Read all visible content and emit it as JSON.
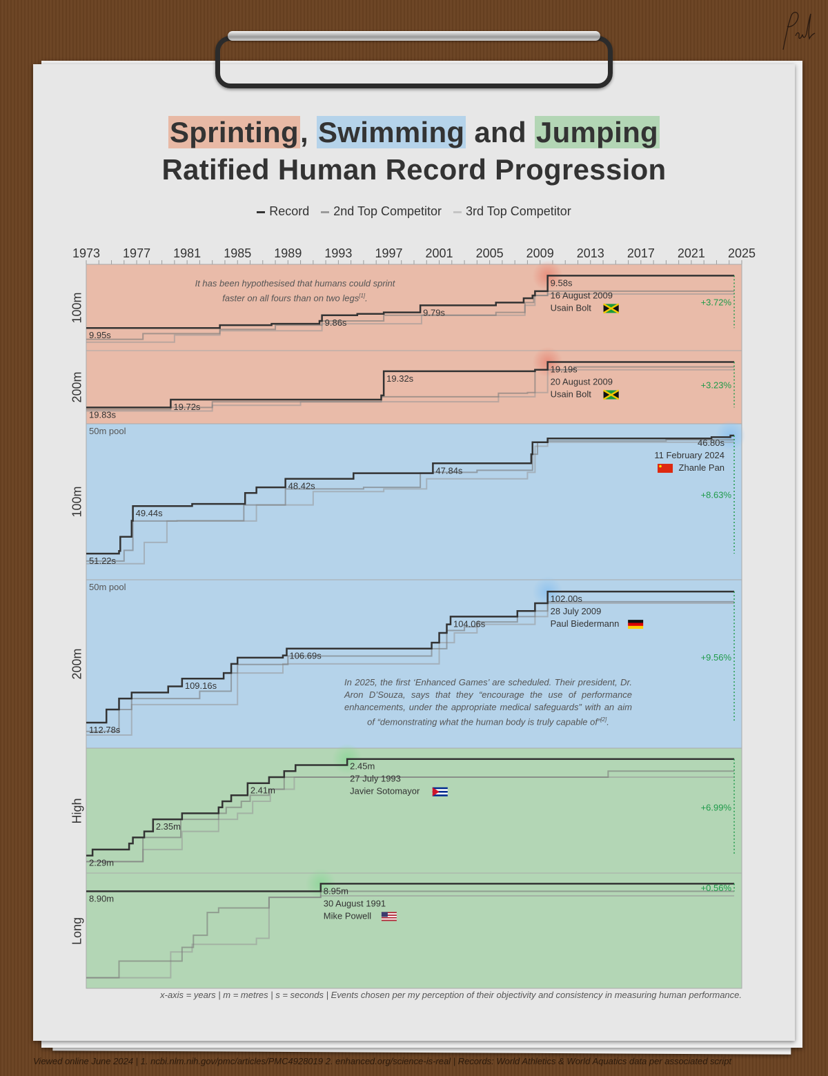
{
  "title": {
    "word_sprint": "Sprinting",
    "comma": ",",
    "word_swim": "Swimming",
    "and": "and",
    "word_jump": "Jumping",
    "line2": "Ratified Human Record Progression"
  },
  "legend": [
    {
      "label": "Record",
      "color": "#333333"
    },
    {
      "label": "2nd Top Competitor",
      "color": "#9a9a9a"
    },
    {
      "label": "3rd Top Competitor",
      "color": "#c4c4c4"
    }
  ],
  "colors": {
    "sprint": "#e9bba9",
    "swim": "#b5d3ea",
    "jump": "#b3d6b5",
    "improvement": "#1f9a4a",
    "record": "#333333"
  },
  "notes": {
    "sprint": "It has been hypothesised that humans could sprint faster on all fours than on two legs",
    "sprint_ref": "[1]",
    "swim": "In 2025, the first ‘Enhanced Games’ are scheduled. Their president, Dr. Aron D’Souza, says that they “encourage the use of performance enhancements, under the appropriate medical safeguards” with an aim of “demonstrating what the human body is truly capable of”",
    "swim_ref": "[2]"
  },
  "caption": "x-axis = years | m = metres | s = seconds | Events chosen per my perception of their objectivity and consistency in measuring human performance.",
  "footer": "Viewed online June 2024 | 1. ncbi.nlm.nih.gov/pmc/articles/PMC4928019 2. enhanced.org/science-is-real | Records: World Athletics & World Aquatics data per associated script",
  "chart_data": {
    "type": "line",
    "step": true,
    "xlim": [
      1973,
      2025
    ],
    "x_end": 2024.4,
    "xticks": [
      1973,
      1977,
      1981,
      1985,
      1989,
      1993,
      1997,
      2001,
      2005,
      2009,
      2013,
      2017,
      2021,
      2025
    ],
    "panels": [
      {
        "label": "100m",
        "group": "sprint",
        "sublabel": "",
        "ylim": [
          10.11,
          9.5
        ],
        "improvement": "+3.72%",
        "record": [
          [
            1973,
            9.95
          ],
          [
            1983.6,
            9.93
          ],
          [
            1987.7,
            9.92
          ],
          [
            1991.5,
            9.9
          ],
          [
            1991.7,
            9.86
          ],
          [
            1994.5,
            9.85
          ],
          [
            1996.6,
            9.84
          ],
          [
            1999.5,
            9.79
          ],
          [
            2005.5,
            9.77
          ],
          [
            2007.7,
            9.74
          ],
          [
            2008.4,
            9.72
          ],
          [
            2008.6,
            9.69
          ],
          [
            2009.6,
            9.58
          ]
        ],
        "second": [
          [
            1973,
            10.03
          ],
          [
            1977.5,
            9.99
          ],
          [
            1983.6,
            9.96
          ],
          [
            1988,
            9.93
          ],
          [
            1991.7,
            9.9
          ],
          [
            1996.6,
            9.86
          ],
          [
            2005.5,
            9.84
          ],
          [
            2007.8,
            9.77
          ],
          [
            2008.5,
            9.72
          ],
          [
            2009.6,
            9.69
          ]
        ],
        "third": [
          [
            1973,
            10.05
          ],
          [
            1980,
            10.0
          ],
          [
            1983.6,
            9.97
          ],
          [
            1991.7,
            9.92
          ],
          [
            1999.6,
            9.86
          ],
          [
            2007.8,
            9.79
          ],
          [
            2008.6,
            9.72
          ],
          [
            2009.6,
            9.71
          ]
        ],
        "labels": [
          {
            "year": 1973,
            "value": 9.95,
            "text": "9.95s"
          },
          {
            "year": 1991.7,
            "value": 9.86,
            "text": "9.86s"
          },
          {
            "year": 1999.5,
            "value": 9.79,
            "text": "9.79s"
          }
        ],
        "holder": {
          "year": 2009.6,
          "value": 9.58,
          "time": "9.58s",
          "date": "16 August 2009",
          "name": "Usain Bolt",
          "flag": "jamaica"
        }
      },
      {
        "label": "200m",
        "group": "sprint",
        "sublabel": "",
        "ylim": [
          20.06,
          19.03
        ],
        "improvement": "+3.23%",
        "record": [
          [
            1973,
            19.83
          ],
          [
            1979.7,
            19.72
          ],
          [
            1996.4,
            19.66
          ],
          [
            1996.6,
            19.32
          ],
          [
            2008.6,
            19.3
          ],
          [
            2009.6,
            19.19
          ]
        ],
        "second": [
          [
            1973,
            19.86
          ],
          [
            1979.7,
            19.83
          ],
          [
            1983,
            19.75
          ],
          [
            1996.4,
            19.68
          ],
          [
            2005.7,
            19.63
          ],
          [
            2008,
            19.62
          ],
          [
            2008.6,
            19.3
          ],
          [
            2011.7,
            19.26
          ]
        ],
        "third": [
          [
            1973,
            19.88
          ],
          [
            1983,
            19.8
          ],
          [
            1990,
            19.75
          ],
          [
            2005.7,
            19.68
          ],
          [
            2008.6,
            19.62
          ],
          [
            2009.6,
            19.3
          ]
        ],
        "labels": [
          {
            "year": 1973,
            "value": 19.83,
            "text": "19.83s"
          },
          {
            "year": 1979.7,
            "value": 19.72,
            "text": "19.72s"
          },
          {
            "year": 1996.6,
            "value": 19.32,
            "text": "19.32s"
          }
        ],
        "holder": {
          "year": 2009.6,
          "value": 19.19,
          "time": "19.19s",
          "date": "20 August 2009",
          "name": "Usain Bolt",
          "flag": "jamaica"
        }
      },
      {
        "label": "100m",
        "group": "swim",
        "sublabel": "50m pool",
        "ylim": [
          52.2,
          46.36
        ],
        "improvement": "+8.63%",
        "record": [
          [
            1973,
            51.22
          ],
          [
            1975.6,
            51.12
          ],
          [
            1975.7,
            50.59
          ],
          [
            1976.6,
            49.99
          ],
          [
            1976.7,
            49.44
          ],
          [
            1981.4,
            49.36
          ],
          [
            1985.6,
            48.95
          ],
          [
            1986.5,
            48.74
          ],
          [
            1988.8,
            48.42
          ],
          [
            1994.2,
            48.21
          ],
          [
            2000.5,
            47.84
          ],
          [
            2008.3,
            47.5
          ],
          [
            2008.4,
            47.05
          ],
          [
            2009.6,
            46.91
          ],
          [
            2022.6,
            46.86
          ],
          [
            2024.1,
            46.8
          ]
        ],
        "second": [
          [
            1973,
            51.5
          ],
          [
            1976,
            51.1
          ],
          [
            1976.7,
            50.0
          ],
          [
            1980.2,
            49.99
          ],
          [
            1985.5,
            49.4
          ],
          [
            1988.8,
            48.8
          ],
          [
            1995,
            48.74
          ],
          [
            1999.5,
            48.2
          ],
          [
            2000.5,
            48.18
          ],
          [
            2004,
            48.1
          ],
          [
            2008.4,
            47.5
          ],
          [
            2008.8,
            47.05
          ],
          [
            2009.6,
            47.0
          ],
          [
            2019,
            46.96
          ]
        ],
        "third": [
          [
            1973,
            51.6
          ],
          [
            1977.6,
            50.8
          ],
          [
            1979.4,
            50.0
          ],
          [
            1986.5,
            49.4
          ],
          [
            1991,
            48.9
          ],
          [
            1996.6,
            48.8
          ],
          [
            2000,
            48.42
          ],
          [
            2008,
            48.18
          ],
          [
            2008.6,
            47.2
          ],
          [
            2009.6,
            47.05
          ]
        ],
        "labels": [
          {
            "year": 1973,
            "value": 51.22,
            "text": "51.22s"
          },
          {
            "year": 1976.7,
            "value": 49.44,
            "text": "49.44s"
          },
          {
            "year": 1988.8,
            "value": 48.42,
            "text": "48.42s"
          },
          {
            "year": 2000.5,
            "value": 47.84,
            "text": "47.84s"
          }
        ],
        "holder": {
          "year": 2024.1,
          "value": 46.8,
          "time": "46.80s",
          "date": "11 February 2024",
          "name": "Zhanle Pan",
          "flag": "china"
        }
      },
      {
        "label": "200m",
        "group": "swim",
        "sublabel": "50m pool",
        "ylim": [
          114.88,
          101.03
        ],
        "improvement": "+9.56%",
        "record": [
          [
            1973,
            112.78
          ],
          [
            1974.6,
            111.7
          ],
          [
            1975.6,
            110.8
          ],
          [
            1976.6,
            110.3
          ],
          [
            1979.5,
            109.8
          ],
          [
            1980.6,
            109.16
          ],
          [
            1983.9,
            108.7
          ],
          [
            1984.5,
            107.95
          ],
          [
            1985,
            107.44
          ],
          [
            1988.6,
            107.25
          ],
          [
            1988.9,
            106.69
          ],
          [
            2000.4,
            106.2
          ],
          [
            2001,
            105.4
          ],
          [
            2001.6,
            104.7
          ],
          [
            2001.9,
            104.06
          ],
          [
            2007.2,
            103.6
          ],
          [
            2008.6,
            102.96
          ],
          [
            2009.6,
            102.0
          ]
        ],
        "second": [
          [
            1973,
            113.5
          ],
          [
            1975.6,
            111.7
          ],
          [
            1976.6,
            110.8
          ],
          [
            1982,
            110.2
          ],
          [
            1984.5,
            108.7
          ],
          [
            1985,
            108.0
          ],
          [
            1989,
            107.3
          ],
          [
            2000.4,
            106.7
          ],
          [
            2001.6,
            105.2
          ],
          [
            2003,
            104.9
          ],
          [
            2004,
            104.5
          ],
          [
            2007.2,
            104.06
          ],
          [
            2008.6,
            103.6
          ],
          [
            2009.6,
            102.84
          ]
        ],
        "third": [
          [
            1973,
            113.8
          ],
          [
            1976.6,
            111.3
          ],
          [
            1985,
            108.7
          ],
          [
            1988.6,
            107.95
          ],
          [
            2001,
            106.2
          ],
          [
            2002.2,
            105.4
          ],
          [
            2004,
            104.7
          ],
          [
            2008.6,
            104.06
          ],
          [
            2009.6,
            102.96
          ]
        ],
        "labels": [
          {
            "year": 1973,
            "value": 112.78,
            "text": "112.78s"
          },
          {
            "year": 1980.6,
            "value": 109.16,
            "text": "109.16s"
          },
          {
            "year": 1988.9,
            "value": 106.69,
            "text": "106.69s"
          },
          {
            "year": 2001.9,
            "value": 104.06,
            "text": "104.06s"
          }
        ],
        "holder": {
          "year": 2009.6,
          "value": 102.0,
          "time": "102.00s",
          "date": "28 July 2009",
          "name": "Paul Biedermann",
          "flag": "germany"
        }
      },
      {
        "label": "High",
        "group": "jump",
        "sublabel": "",
        "ylim": [
          2.261,
          2.468
        ],
        "improvement": "+6.99%",
        "record": [
          [
            1973,
            2.29
          ],
          [
            1973.5,
            2.3
          ],
          [
            1976.4,
            2.31
          ],
          [
            1976.7,
            2.32
          ],
          [
            1977.6,
            2.33
          ],
          [
            1978.3,
            2.35
          ],
          [
            1980.6,
            2.36
          ],
          [
            1983.5,
            2.37
          ],
          [
            1983.8,
            2.38
          ],
          [
            1984.5,
            2.39
          ],
          [
            1985.8,
            2.41
          ],
          [
            1987.5,
            2.42
          ],
          [
            1988.7,
            2.43
          ],
          [
            1989.6,
            2.44
          ],
          [
            1993.7,
            2.45
          ]
        ],
        "second": [
          [
            1973,
            2.28
          ],
          [
            1977.5,
            2.32
          ],
          [
            1980.5,
            2.35
          ],
          [
            1983.5,
            2.36
          ],
          [
            1984.1,
            2.37
          ],
          [
            1985.3,
            2.38
          ],
          [
            1986.0,
            2.39
          ],
          [
            1987.5,
            2.4
          ],
          [
            1988.7,
            2.42
          ],
          [
            2014.4,
            2.43
          ]
        ],
        "third": [
          [
            1973,
            2.28
          ],
          [
            1977.5,
            2.3
          ],
          [
            1980.6,
            2.33
          ],
          [
            1983.5,
            2.35
          ],
          [
            1985,
            2.36
          ],
          [
            1986.2,
            2.38
          ],
          [
            1987.6,
            2.4
          ],
          [
            1989.5,
            2.42
          ]
        ],
        "labels": [
          {
            "year": 1973,
            "value": 2.29,
            "text": "2.29m"
          },
          {
            "year": 1978.3,
            "value": 2.35,
            "text": "2.35m"
          },
          {
            "year": 1985.8,
            "value": 2.41,
            "text": "2.41m"
          }
        ],
        "holder": {
          "year": 1993.7,
          "value": 2.45,
          "time": "2.45m",
          "date": "27 July 1993",
          "name": "Javier Sotomayor",
          "flag": "cuba"
        }
      },
      {
        "label": "Long",
        "group": "jump",
        "sublabel": "",
        "ylim": [
          8.26,
          9.02
        ],
        "improvement": "+0.56%",
        "record": [
          [
            1973,
            8.9
          ],
          [
            1991.6,
            8.95
          ]
        ],
        "second": [
          [
            1973,
            8.33
          ],
          [
            1975.6,
            8.44
          ],
          [
            1980.6,
            8.53
          ],
          [
            1981.5,
            8.61
          ],
          [
            1982.6,
            8.76
          ],
          [
            1983.5,
            8.79
          ],
          [
            1987.5,
            8.86
          ],
          [
            1991.6,
            8.9
          ]
        ],
        "third": [
          [
            1973,
            8.33
          ],
          [
            1979.7,
            8.5
          ],
          [
            1981.4,
            8.55
          ],
          [
            1986.5,
            8.59
          ],
          [
            1987.5,
            8.86
          ],
          [
            1991.6,
            8.87
          ]
        ],
        "labels": [
          {
            "year": 1973,
            "value": 8.9,
            "text": "8.90m"
          }
        ],
        "holder": {
          "year": 1991.6,
          "value": 8.95,
          "time": "8.95m",
          "date": "30 August 1991",
          "name": "Mike Powell",
          "flag": "usa"
        }
      }
    ]
  }
}
